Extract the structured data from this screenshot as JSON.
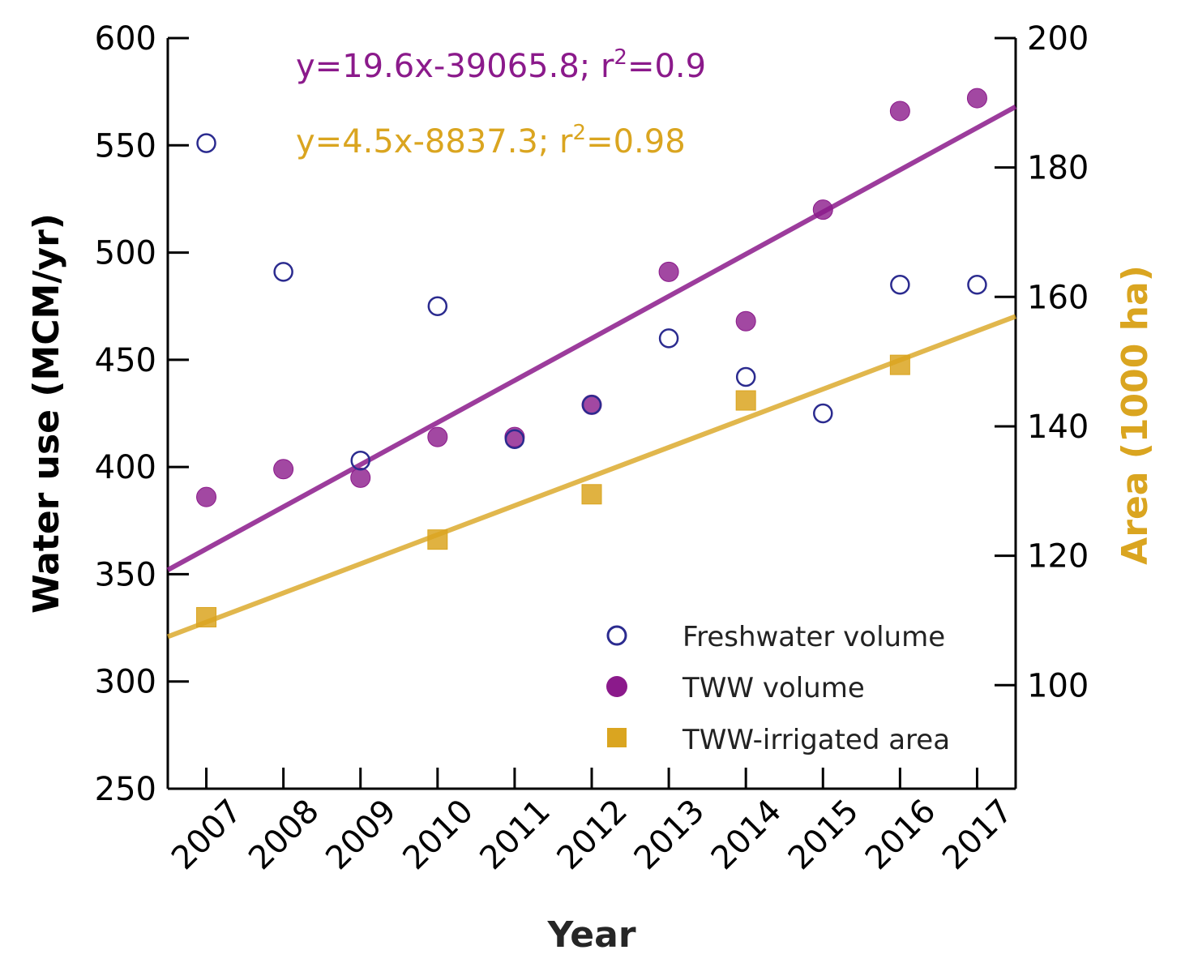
{
  "chart_data": {
    "type": "scatter",
    "x": [
      2007,
      2008,
      2009,
      2010,
      2011,
      2012,
      2013,
      2014,
      2015,
      2016,
      2017
    ],
    "x_tick_labels": [
      "2007",
      "2008",
      "2009",
      "2010",
      "2011",
      "2012",
      "2013",
      "2014",
      "2015",
      "2016",
      "2017"
    ],
    "xlabel": "Year",
    "ylabel_left": "Water use (MCM/yr)",
    "ylabel_right": "Area (1000 ha)",
    "ylim_left": [
      250,
      600
    ],
    "ylim_right": [
      84,
      200
    ],
    "y_ticks_left": [
      250,
      300,
      350,
      400,
      450,
      500,
      550,
      600
    ],
    "y_ticks_right": [
      100,
      120,
      140,
      160,
      180,
      200
    ],
    "grid": false,
    "legend_position": "bottom-right",
    "series": [
      {
        "name": "Freshwater volume",
        "axis": "left",
        "marker": "open-circle",
        "color": "#2b2b8f",
        "x": [
          2007,
          2008,
          2009,
          2010,
          2011,
          2012,
          2013,
          2014,
          2015,
          2016,
          2017
        ],
        "y": [
          551,
          491,
          403,
          475,
          413,
          429,
          460,
          442,
          425,
          485,
          485
        ]
      },
      {
        "name": "TWW volume",
        "axis": "left",
        "marker": "filled-circle",
        "color": "#8b1a8b",
        "x": [
          2007,
          2008,
          2009,
          2010,
          2011,
          2012,
          2013,
          2014,
          2015,
          2016,
          2017
        ],
        "y": [
          386,
          399,
          395,
          414,
          414,
          429,
          491,
          468,
          520,
          566,
          572
        ]
      },
      {
        "name": "TWW-irrigated area",
        "axis": "right",
        "marker": "square",
        "color": "#daa520",
        "x": [
          2007,
          2010,
          2012,
          2014,
          2016
        ],
        "y": [
          110.5,
          122.5,
          129.5,
          144,
          149.5
        ]
      }
    ],
    "trendlines": [
      {
        "axis": "left",
        "color": "#8b1a8b",
        "equation_prefix": "y=19.6x-39065.8; r",
        "equation_sup": "2",
        "equation_suffix": "=0.9",
        "x_range": [
          2006.5,
          2017.5
        ],
        "y_range": [
          352,
          568
        ]
      },
      {
        "axis": "right",
        "color": "#daa520",
        "equation_prefix": "y=4.5x-8837.3; r",
        "equation_sup": "2",
        "equation_suffix": "=0.98",
        "x_range": [
          2006.5,
          2017.5
        ],
        "y_range": [
          107.5,
          157
        ]
      }
    ]
  }
}
